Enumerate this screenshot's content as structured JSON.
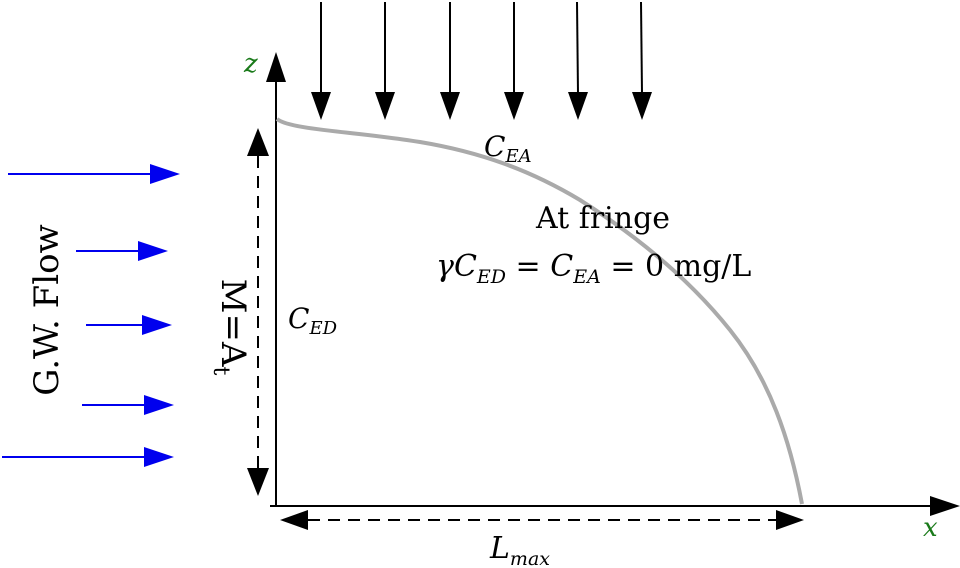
{
  "axes": {
    "z_label": "z",
    "x_label": "x",
    "label_color": "#1a7a1a"
  },
  "labels": {
    "c_ea": {
      "base": "C",
      "sub": "EA"
    },
    "c_ed": {
      "base": "C",
      "sub": "ED"
    },
    "fringe_line1": "At fringe",
    "fringe_eq": {
      "gamma": "γ",
      "c1": "C",
      "c1_sub": "ED",
      "eq1": " = ",
      "c2": "C",
      "c2_sub": "EA",
      "eq2": " = 0 mg/L"
    },
    "l_max": {
      "base": "L",
      "sub": "max"
    },
    "m_label": "M=A",
    "m_sub": "t",
    "gw_flow": "G.W. Flow"
  },
  "colors": {
    "flow_arrow": "#0000ee",
    "plume_curve": "#aaaaaa",
    "axis": "#000000"
  }
}
